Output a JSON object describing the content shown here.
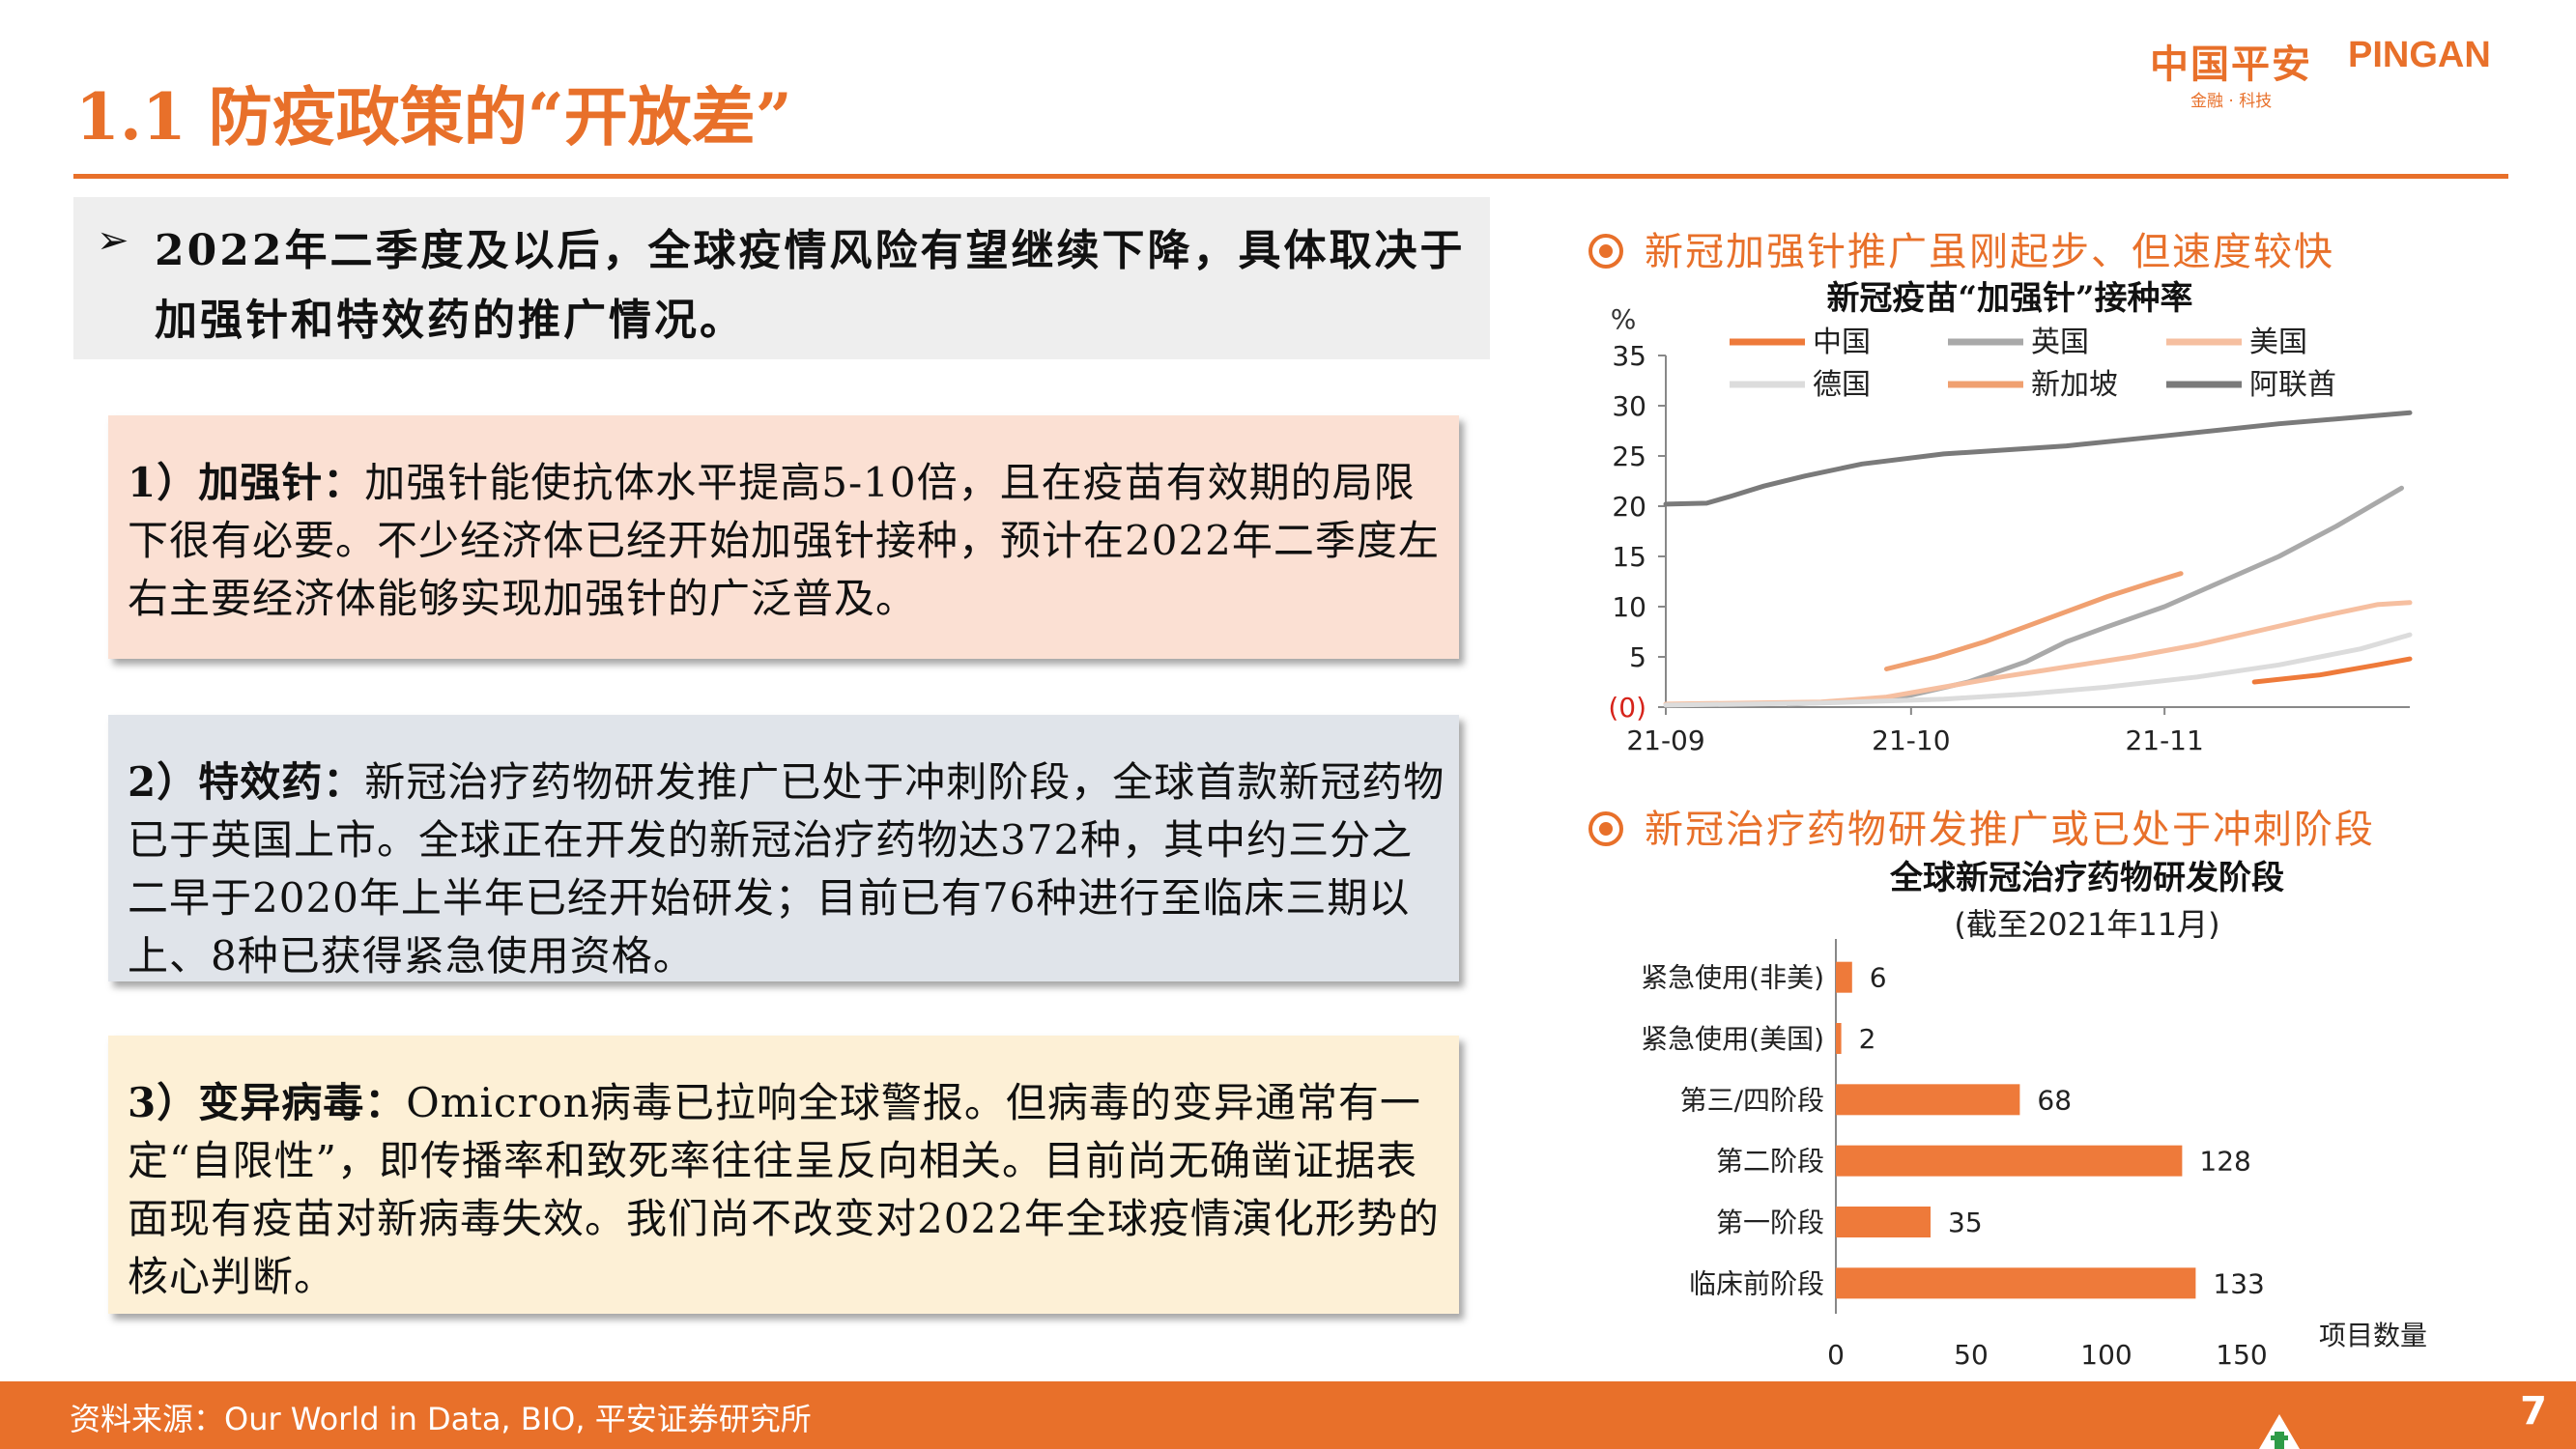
{
  "header": {
    "title": "1.1 防疫政策的“开放差”",
    "logo_cn": "中国平安",
    "logo_en": "PINGAN",
    "logo_sub": "金融 · 科技"
  },
  "intro": {
    "arrow": "➢",
    "text": "2022年二季度及以后，全球疫情风险有望继续下降，具体取决于加强针和特效药的推广情况。"
  },
  "cards": [
    {
      "label": "1）加强针：",
      "text": "加强针能使抗体水平提高5-10倍，且在疫苗有效期的局限下很有必要。不少经济体已经开始加强针接种，预计在2022年二季度左右主要经济体能够实现加强针的广泛普及。"
    },
    {
      "label": "2）特效药：",
      "text": "新冠治疗药物研发推广已处于冲刺阶段，全球首款新冠药物已于英国上市。全球正在开发的新冠治疗药物达372种，其中约三分之二早于2020年上半年已经开始研发；目前已有76种进行至临床三期以上、8种已获得紧急使用资格。"
    },
    {
      "label": "3）变异病毒：",
      "text": "Omicron病毒已拉响全球警报。但病毒的变异通常有一定“自限性”，即传播率和致死率往往呈反向相关。目前尚无确凿证据表面现有疫苗对新病毒失效。我们尚不改变对2022年全球疫情演化形势的核心判断。"
    }
  ],
  "section1": {
    "heading": "新冠加强针推广虽刚起步、但速度较快"
  },
  "section2": {
    "heading": "新冠治疗药物研发推广或已处于冲刺阶段"
  },
  "footer": {
    "source": "资料来源：Our World in Data, BIO, 平安证券研究所",
    "page": "7"
  },
  "colors": {
    "accent": "#e8702a"
  },
  "chart_data": [
    {
      "type": "line",
      "title": "新冠疫苗“加强针”接种率",
      "ylabel": "%",
      "ylim": [
        0,
        35
      ],
      "yticks": [
        "(0)",
        "5",
        "10",
        "15",
        "20",
        "25",
        "30",
        "35"
      ],
      "xticks": [
        "21-09",
        "21-10",
        "21-11"
      ],
      "x_range": [
        "2021-09-01",
        "2021-12-01"
      ],
      "legend_position": "top",
      "series": [
        {
          "name": "中国",
          "color": "#ee7a3a",
          "width": 5,
          "points": [
            [
              "2021-11-12",
              2.5
            ],
            [
              "2021-11-20",
              3.2
            ],
            [
              "2021-11-27",
              4.2
            ],
            [
              "2021-12-01",
              4.8
            ]
          ]
        },
        {
          "name": "英国",
          "color": "#a9a9a9",
          "width": 5,
          "points": [
            [
              "2021-09-16",
              0.3
            ],
            [
              "2021-09-25",
              0.6
            ],
            [
              "2021-10-01",
              1.2
            ],
            [
              "2021-10-08",
              2.5
            ],
            [
              "2021-10-15",
              4.5
            ],
            [
              "2021-10-20",
              6.5
            ],
            [
              "2021-10-25",
              8.0
            ],
            [
              "2021-11-01",
              10.0
            ],
            [
              "2021-11-08",
              12.5
            ],
            [
              "2021-11-15",
              15.0
            ],
            [
              "2021-11-22",
              18.0
            ],
            [
              "2021-11-30",
              21.8
            ]
          ]
        },
        {
          "name": "美国",
          "color": "#f6bfa0",
          "width": 5,
          "points": [
            [
              "2021-09-01",
              0.3
            ],
            [
              "2021-09-20",
              0.5
            ],
            [
              "2021-09-28",
              1.0
            ],
            [
              "2021-10-05",
              2.0
            ],
            [
              "2021-10-12",
              3.0
            ],
            [
              "2021-10-20",
              4.0
            ],
            [
              "2021-10-28",
              5.0
            ],
            [
              "2021-11-05",
              6.2
            ],
            [
              "2021-11-12",
              7.5
            ],
            [
              "2021-11-20",
              9.0
            ],
            [
              "2021-11-27",
              10.2
            ],
            [
              "2021-12-01",
              10.4
            ]
          ]
        },
        {
          "name": "德国",
          "color": "#dcdcdc",
          "width": 5,
          "points": [
            [
              "2021-09-01",
              0.2
            ],
            [
              "2021-09-20",
              0.4
            ],
            [
              "2021-10-05",
              0.8
            ],
            [
              "2021-10-15",
              1.3
            ],
            [
              "2021-10-25",
              2.0
            ],
            [
              "2021-11-05",
              3.0
            ],
            [
              "2021-11-15",
              4.2
            ],
            [
              "2021-11-25",
              5.8
            ],
            [
              "2021-12-01",
              7.2
            ]
          ]
        },
        {
          "name": "新加坡",
          "color": "#f0a070",
          "width": 5,
          "points": [
            [
              "2021-09-28",
              3.8
            ],
            [
              "2021-10-04",
              5.0
            ],
            [
              "2021-10-10",
              6.5
            ],
            [
              "2021-10-15",
              8.0
            ],
            [
              "2021-10-20",
              9.5
            ],
            [
              "2021-10-25",
              11.0
            ],
            [
              "2021-10-30",
              12.3
            ],
            [
              "2021-11-03",
              13.3
            ]
          ]
        },
        {
          "name": "阿联酋",
          "color": "#7a7a7a",
          "width": 5,
          "points": [
            [
              "2021-09-01",
              20.2
            ],
            [
              "2021-09-06",
              20.3
            ],
            [
              "2021-09-09",
              21.0
            ],
            [
              "2021-09-13",
              22.0
            ],
            [
              "2021-09-18",
              23.0
            ],
            [
              "2021-09-25",
              24.2
            ],
            [
              "2021-10-05",
              25.2
            ],
            [
              "2021-10-20",
              26.0
            ],
            [
              "2021-11-01",
              27.0
            ],
            [
              "2021-11-15",
              28.2
            ],
            [
              "2021-12-01",
              29.3
            ]
          ]
        }
      ]
    },
    {
      "type": "bar",
      "orientation": "horizontal",
      "title": "全球新冠治疗药物研发阶段",
      "subtitle": "(截至2021年11月)",
      "xlabel": "项目数量",
      "xlim": [
        0,
        150
      ],
      "xticks": [
        "0",
        "50",
        "100",
        "150"
      ],
      "categories": [
        "紧急使用(非美)",
        "紧急使用(美国)",
        "第三/四阶段",
        "第二阶段",
        "第一阶段",
        "临床前阶段"
      ],
      "values": [
        6,
        2,
        68,
        128,
        35,
        133
      ],
      "color": "#ee7a3a"
    }
  ]
}
